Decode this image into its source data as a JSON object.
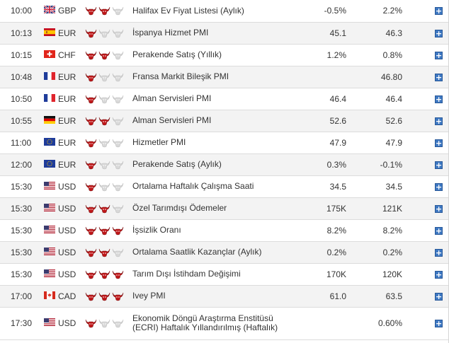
{
  "rows": [
    {
      "time": "10:00",
      "currency": "GBP",
      "flag": "uk-flag-icon",
      "importance": 2,
      "event": "Halifax Ev Fiyat Listesi (Aylık)",
      "actual": "-0.5%",
      "forecast": "2.2%"
    },
    {
      "time": "10:13",
      "currency": "EUR",
      "flag": "spain-flag-icon",
      "importance": 1,
      "event": "İspanya Hizmet PMI",
      "actual": "45.1",
      "forecast": "46.3"
    },
    {
      "time": "10:15",
      "currency": "CHF",
      "flag": "switzerland-flag-icon",
      "importance": 2,
      "event": "Perakende Satış (Yıllık)",
      "actual": "1.2%",
      "forecast": "0.8%"
    },
    {
      "time": "10:48",
      "currency": "EUR",
      "flag": "france-flag-icon",
      "importance": 1,
      "event": "Fransa Markit Bileşik PMI",
      "actual": "",
      "forecast": "46.80"
    },
    {
      "time": "10:50",
      "currency": "EUR",
      "flag": "france-flag-icon",
      "importance": 1,
      "event": "Alman Servisleri PMI",
      "actual": "46.4",
      "forecast": "46.4"
    },
    {
      "time": "10:55",
      "currency": "EUR",
      "flag": "germany-flag-icon",
      "importance": 2,
      "event": "Alman Servisleri PMI",
      "actual": "52.6",
      "forecast": "52.6"
    },
    {
      "time": "11:00",
      "currency": "EUR",
      "flag": "eu-flag-icon",
      "importance": 1,
      "event": "Hizmetler PMI",
      "actual": "47.9",
      "forecast": "47.9"
    },
    {
      "time": "12:00",
      "currency": "EUR",
      "flag": "eu-flag-icon",
      "importance": 1,
      "event": "Perakende Satış (Aylık)",
      "actual": "0.3%",
      "forecast": "-0.1%"
    },
    {
      "time": "15:30",
      "currency": "USD",
      "flag": "usa-flag-icon",
      "importance": 1,
      "event": "Ortalama Haftalık Çalışma Saati",
      "actual": "34.5",
      "forecast": "34.5"
    },
    {
      "time": "15:30",
      "currency": "USD",
      "flag": "usa-flag-icon",
      "importance": 2,
      "event": "Özel Tarımdışı Ödemeler",
      "actual": "175K",
      "forecast": "121K"
    },
    {
      "time": "15:30",
      "currency": "USD",
      "flag": "usa-flag-icon",
      "importance": 3,
      "event": "İşsizlik Oranı",
      "actual": "8.2%",
      "forecast": "8.2%"
    },
    {
      "time": "15:30",
      "currency": "USD",
      "flag": "usa-flag-icon",
      "importance": 2,
      "event": "Ortalama Saatlik Kazançlar (Aylık)",
      "actual": "0.2%",
      "forecast": "0.2%"
    },
    {
      "time": "15:30",
      "currency": "USD",
      "flag": "usa-flag-icon",
      "importance": 3,
      "event": "Tarım Dışı İstihdam Değişimi",
      "actual": "170K",
      "forecast": "120K"
    },
    {
      "time": "17:00",
      "currency": "CAD",
      "flag": "canada-flag-icon",
      "importance": 3,
      "event": "Ivey PMI",
      "actual": "61.0",
      "forecast": "63.5"
    },
    {
      "time": "17:30",
      "currency": "USD",
      "flag": "usa-flag-icon",
      "importance": 1,
      "event": "Ekonomik Döngü Araştırma Enstitüsü (ECRI) Haftalık Yıllandırılmış (Haftalık)",
      "actual": "",
      "forecast": "0.60%"
    }
  ],
  "add_symbol": "+",
  "colors": {
    "bull_active": "#c0181a",
    "bull_inactive": "#d8d8d8",
    "add_button": "#3e78c2"
  }
}
